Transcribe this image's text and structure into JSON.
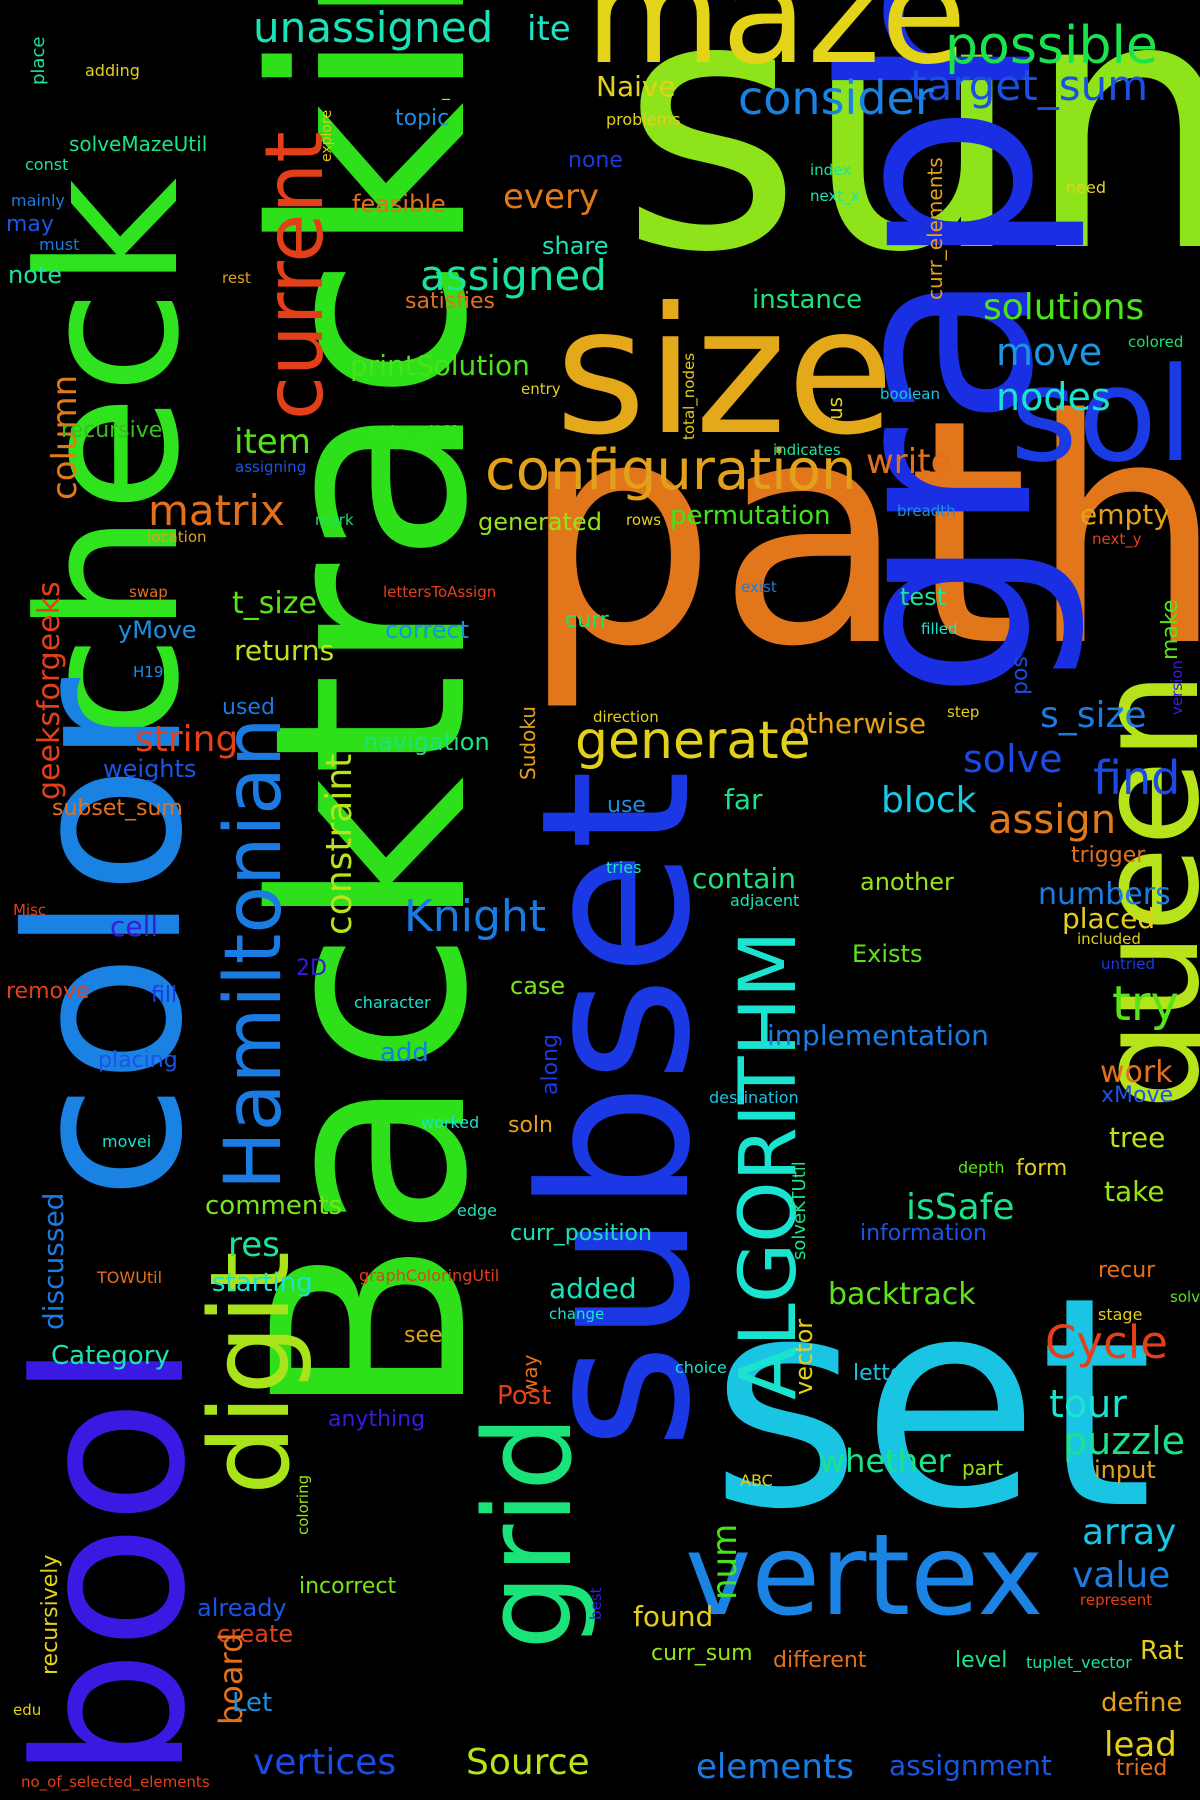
{
  "words": [
    {
      "text": "Backtracking",
      "color": "#2de01a"
    },
    {
      "text": "check",
      "color": "#2fe31f"
    },
    {
      "text": "sum",
      "color": "#8ee31a"
    },
    {
      "text": "path",
      "color": "#e2761a"
    },
    {
      "text": "set",
      "color": "#1ac4e3"
    },
    {
      "text": "graph",
      "color": "#1a2ee3"
    },
    {
      "text": "size",
      "color": "#e3a91a"
    },
    {
      "text": "maze",
      "color": "#e3d41a"
    },
    {
      "text": "subset",
      "color": "#1a38e3"
    },
    {
      "text": "color",
      "color": "#1a82e3"
    },
    {
      "text": "bool",
      "color": "#3a1ae3"
    },
    {
      "text": "queen",
      "color": "#b7e31a"
    },
    {
      "text": "sol",
      "color": "#1a3be3"
    },
    {
      "text": "vertex",
      "color": "#1a83e3"
    },
    {
      "text": "grid",
      "color": "#1ae37a"
    },
    {
      "text": "digit",
      "color": "#a9e31a"
    },
    {
      "text": "ALGORITHM",
      "color": "#1ae3cf"
    },
    {
      "text": "Hamiltonian",
      "color": "#1a7ce3"
    },
    {
      "text": "current",
      "color": "#e3401a"
    },
    {
      "text": "configuration",
      "color": "#e3a01a"
    },
    {
      "text": "Cycle",
      "color": "#e3401a"
    },
    {
      "text": "generate",
      "color": "#e3d01a"
    },
    {
      "text": "unassigned",
      "color": "#1ae3b7"
    },
    {
      "text": "possible",
      "color": "#1ae34c"
    },
    {
      "text": "target_sum",
      "color": "#1a50e3"
    },
    {
      "text": "consider",
      "color": "#1a82e3"
    },
    {
      "text": "Naive",
      "color": "#e3d01a"
    },
    {
      "text": "ite",
      "color": "#1ae3c8"
    },
    {
      "text": "topic",
      "color": "#1a8fe3"
    },
    {
      "text": "problems",
      "color": "#e3d01a"
    },
    {
      "text": "explore",
      "color": "#e3c41a"
    },
    {
      "text": "index",
      "color": "#1ae3a0"
    },
    {
      "text": "next_x",
      "color": "#1ae3b7"
    },
    {
      "text": "need",
      "color": "#e3d41a"
    },
    {
      "text": "none",
      "color": "#1a3be3"
    },
    {
      "text": "every",
      "color": "#e37a1a"
    },
    {
      "text": "share",
      "color": "#1ae3b7"
    },
    {
      "text": "assigned",
      "color": "#1ae39b"
    },
    {
      "text": "feasible",
      "color": "#e3701a"
    },
    {
      "text": "satisfies",
      "color": "#e3701a"
    },
    {
      "text": "instance",
      "color": "#1ae37a"
    },
    {
      "text": "solutions",
      "color": "#4ce31a"
    },
    {
      "text": "move",
      "color": "#1a96e3"
    },
    {
      "text": "nodes",
      "color": "#1ae3cf"
    },
    {
      "text": "column",
      "color": "#e37a1a"
    },
    {
      "text": "recursive",
      "color": "#36c21a"
    },
    {
      "text": "item",
      "color": "#56e31a"
    },
    {
      "text": "min_diff",
      "color": "#2de31a"
    },
    {
      "text": "printSolution",
      "color": "#46e31a"
    },
    {
      "text": "matrix",
      "color": "#e3701a"
    },
    {
      "text": "write",
      "color": "#e3701a"
    },
    {
      "text": "empty",
      "color": "#e3a01a"
    },
    {
      "text": "permutation",
      "color": "#40e31a"
    },
    {
      "text": "generated",
      "color": "#96e31a"
    },
    {
      "text": "geeksforgeeks",
      "color": "#e3401a"
    },
    {
      "text": "t_size",
      "color": "#5ee31a"
    },
    {
      "text": "test",
      "color": "#1ae39b"
    },
    {
      "text": "yMove",
      "color": "#1a8fe3"
    },
    {
      "text": "correct",
      "color": "#1a8fe3"
    },
    {
      "text": "curr",
      "color": "#1ae36b"
    },
    {
      "text": "returns",
      "color": "#bee31a"
    },
    {
      "text": "H19",
      "color": "#1a8fe3"
    },
    {
      "text": "used",
      "color": "#1a7ae3"
    },
    {
      "text": "constraint",
      "color": "#b7e31a"
    },
    {
      "text": "string",
      "color": "#e3401a"
    },
    {
      "text": "weights",
      "color": "#1a56e3"
    },
    {
      "text": "navigation",
      "color": "#1ae380"
    },
    {
      "text": "Sudoku",
      "color": "#e3a01a"
    },
    {
      "text": "otherwise",
      "color": "#e3a01a"
    },
    {
      "text": "s_size",
      "color": "#1a7ce3"
    },
    {
      "text": "solve",
      "color": "#1a4ce3"
    },
    {
      "text": "find",
      "color": "#1a4ce3"
    },
    {
      "text": "pos",
      "color": "#1a4ce3"
    },
    {
      "text": "make",
      "color": "#56e31a"
    },
    {
      "text": "far",
      "color": "#1ae38b"
    },
    {
      "text": "block",
      "color": "#1ac8e3"
    },
    {
      "text": "assign",
      "color": "#e37a1a"
    },
    {
      "text": "subset_sum",
      "color": "#e3701a"
    },
    {
      "text": "use",
      "color": "#1a8fe3"
    },
    {
      "text": "tries",
      "color": "#1ae3b7"
    },
    {
      "text": "contain",
      "color": "#1ae380"
    },
    {
      "text": "another",
      "color": "#96e31a"
    },
    {
      "text": "adjacent",
      "color": "#1ae3b7"
    },
    {
      "text": "trigger",
      "color": "#e3701a"
    },
    {
      "text": "numbers",
      "color": "#1a7ce3"
    },
    {
      "text": "placed",
      "color": "#e3d01a"
    },
    {
      "text": "Knight",
      "color": "#1a7ce3"
    },
    {
      "text": "cell",
      "color": "#3a1ae3"
    },
    {
      "text": "Exists",
      "color": "#5ee31a"
    },
    {
      "text": "included",
      "color": "#e3d01a"
    },
    {
      "text": "untried",
      "color": "#1a3be3"
    },
    {
      "text": "Misc",
      "color": "#e3401a"
    },
    {
      "text": "2D",
      "color": "#3a1ae3"
    },
    {
      "text": "remove",
      "color": "#e3401a"
    },
    {
      "text": "fill",
      "color": "#1a3be3"
    },
    {
      "text": "character",
      "color": "#1ae3cf"
    },
    {
      "text": "case",
      "color": "#7ae31a"
    },
    {
      "text": "try",
      "color": "#56e31a"
    },
    {
      "text": "implementation",
      "color": "#1a7ce3"
    },
    {
      "text": "placing",
      "color": "#1a56e3"
    },
    {
      "text": "add",
      "color": "#1a7ce3"
    },
    {
      "text": "along",
      "color": "#1a3be3"
    },
    {
      "text": "work",
      "color": "#e3701a"
    },
    {
      "text": "xMove",
      "color": "#1a56e3"
    },
    {
      "text": "destination",
      "color": "#1ac4e3"
    },
    {
      "text": "worked",
      "color": "#1ae3cf"
    },
    {
      "text": "movei",
      "color": "#1ae3cf"
    },
    {
      "text": "soln",
      "color": "#e3a01a"
    },
    {
      "text": "tree",
      "color": "#b7e31a"
    },
    {
      "text": "form",
      "color": "#e3d01a"
    },
    {
      "text": "depth",
      "color": "#5ee31a"
    },
    {
      "text": "take",
      "color": "#96e31a"
    },
    {
      "text": "comments",
      "color": "#7ae31a"
    },
    {
      "text": "isSafe",
      "color": "#1ae38b"
    },
    {
      "text": "edge",
      "color": "#1ae3b7"
    },
    {
      "text": "res",
      "color": "#1ae39b"
    },
    {
      "text": "curr_position",
      "color": "#1ae3b7"
    },
    {
      "text": "solveKTUtil",
      "color": "#1ae38b"
    },
    {
      "text": "information",
      "color": "#1a56e3"
    },
    {
      "text": "discussed",
      "color": "#1a7ce3"
    },
    {
      "text": "TOWUtil",
      "color": "#e3701a"
    },
    {
      "text": "starting",
      "color": "#1ae3cf"
    },
    {
      "text": "graphColoringUtil",
      "color": "#e3401a"
    },
    {
      "text": "added",
      "color": "#1ae3b7"
    },
    {
      "text": "change",
      "color": "#1ae3cf"
    },
    {
      "text": "backtrack",
      "color": "#5ee31a"
    },
    {
      "text": "recur",
      "color": "#e3701a"
    },
    {
      "text": "stage",
      "color": "#e3d01a"
    },
    {
      "text": "solved",
      "color": "#5ee31a"
    },
    {
      "text": "Category",
      "color": "#1ae3b7"
    },
    {
      "text": "see",
      "color": "#e3a01a"
    },
    {
      "text": "way",
      "color": "#e3701a"
    },
    {
      "text": "vector",
      "color": "#e3d01a"
    },
    {
      "text": "choice",
      "color": "#1ae3cf"
    },
    {
      "text": "letter",
      "color": "#1ac4e3"
    },
    {
      "text": "tour",
      "color": "#1ae3cf"
    },
    {
      "text": "Post",
      "color": "#e3401a"
    },
    {
      "text": "anything",
      "color": "#3a1ae3"
    },
    {
      "text": "whether",
      "color": "#1ae38b"
    },
    {
      "text": "part",
      "color": "#96e31a"
    },
    {
      "text": "puzzle",
      "color": "#1ae38b"
    },
    {
      "text": "input",
      "color": "#e3a01a"
    },
    {
      "text": "coloring",
      "color": "#96e31a"
    },
    {
      "text": "num",
      "color": "#46e31a"
    },
    {
      "text": "ABC",
      "color": "#e3d01a"
    },
    {
      "text": "array",
      "color": "#1ac4e3"
    },
    {
      "text": "value",
      "color": "#1a7ce3"
    },
    {
      "text": "represent",
      "color": "#e3401a"
    },
    {
      "text": "recursively",
      "color": "#e3d01a"
    },
    {
      "text": "already",
      "color": "#1a56e3"
    },
    {
      "text": "incorrect",
      "color": "#7ae31a"
    },
    {
      "text": "best",
      "color": "#3a1ae3"
    },
    {
      "text": "create",
      "color": "#e3401a"
    },
    {
      "text": "found",
      "color": "#e3d01a"
    },
    {
      "text": "curr_sum",
      "color": "#96e31a"
    },
    {
      "text": "different",
      "color": "#e3701a"
    },
    {
      "text": "level",
      "color": "#1ae38b"
    },
    {
      "text": "tuplet_vector",
      "color": "#1ae3a0"
    },
    {
      "text": "Rat",
      "color": "#e3d01a"
    },
    {
      "text": "board",
      "color": "#e3701a"
    },
    {
      "text": "Let",
      "color": "#1a8fe3"
    },
    {
      "text": "define",
      "color": "#e3a01a"
    },
    {
      "text": "lead",
      "color": "#e3d01a"
    },
    {
      "text": "edu",
      "color": "#e3d01a"
    },
    {
      "text": "vertices",
      "color": "#1a4ce3"
    },
    {
      "text": "Source",
      "color": "#b7e31a"
    },
    {
      "text": "elements",
      "color": "#1a7ce3"
    },
    {
      "text": "assignment",
      "color": "#1a56e3"
    },
    {
      "text": "tried",
      "color": "#e3701a"
    },
    {
      "text": "no_of_selected_elements",
      "color": "#e3401a"
    },
    {
      "text": "place",
      "color": "#1ae39b"
    },
    {
      "text": "adding",
      "color": "#e3d01a"
    },
    {
      "text": "solveMazeUtil",
      "color": "#1ae38b"
    },
    {
      "text": "const",
      "color": "#1ae3a0"
    },
    {
      "text": "mainly",
      "color": "#1a7ce3"
    },
    {
      "text": "may",
      "color": "#1a56e3"
    },
    {
      "text": "must",
      "color": "#1a7ce3"
    },
    {
      "text": "note",
      "color": "#1ae3a0"
    },
    {
      "text": "rest",
      "color": "#e3a01a"
    },
    {
      "text": "assigning",
      "color": "#1a56e3"
    },
    {
      "text": "mark",
      "color": "#1ae36b"
    },
    {
      "text": "location",
      "color": "#e3a01a"
    },
    {
      "text": "swap",
      "color": "#e3701a"
    },
    {
      "text": "lettersToAssign",
      "color": "#e3401a"
    },
    {
      "text": "entry",
      "color": "#e3d01a"
    },
    {
      "text": "total_nodes",
      "color": "#e3d01a"
    },
    {
      "text": "us",
      "color": "#e3d01a"
    },
    {
      "text": "indicates",
      "color": "#1ae3a0"
    },
    {
      "text": "boolean",
      "color": "#1ac4e3"
    },
    {
      "text": "colored",
      "color": "#1ae36b"
    },
    {
      "text": "curr_elements",
      "color": "#e3a01a"
    },
    {
      "text": "breadth",
      "color": "#1a8fe3"
    },
    {
      "text": "rows",
      "color": "#e3d01a"
    },
    {
      "text": "next_y",
      "color": "#e3401a"
    },
    {
      "text": "exist",
      "color": "#1a7ce3"
    },
    {
      "text": "filled",
      "color": "#1ae3cf"
    },
    {
      "text": "direction",
      "color": "#e3d01a"
    },
    {
      "text": "step",
      "color": "#e3d01a"
    },
    {
      "text": "version",
      "color": "#3a1ae3"
    },
    {
      "text": "_",
      "color": "#e3d01a"
    }
  ]
}
